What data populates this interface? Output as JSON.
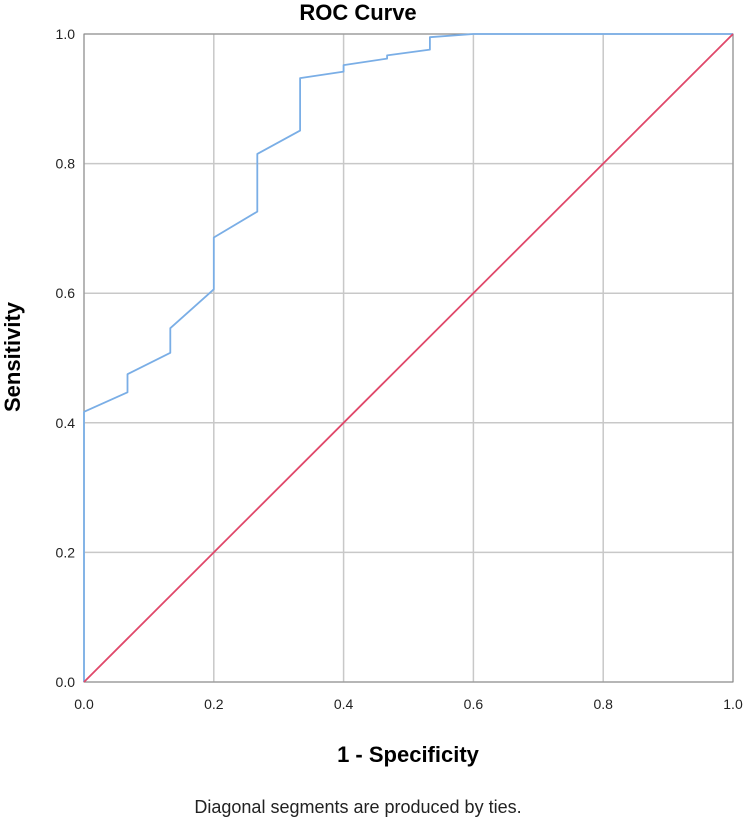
{
  "chart_data": {
    "type": "line",
    "title": "ROC Curve",
    "xlabel": "1 - Specificity",
    "ylabel": "Sensitivity",
    "footnote": "Diagonal segments are produced by ties.",
    "xlim": [
      0,
      1
    ],
    "ylim": [
      0,
      1
    ],
    "x_ticks": [
      "0.0",
      "0.2",
      "0.4",
      "0.6",
      "0.8",
      "1.0"
    ],
    "y_ticks": [
      "0.0",
      "0.2",
      "0.4",
      "0.6",
      "0.8",
      "1.0"
    ],
    "grid": true,
    "series": [
      {
        "color": "#7aaee6",
        "x": [
          0.0,
          0.0,
          0.067,
          0.067,
          0.133,
          0.133,
          0.2,
          0.2,
          0.267,
          0.267,
          0.333,
          0.333,
          0.4,
          0.4,
          0.467,
          0.467,
          0.533,
          0.533,
          0.6,
          1.0
        ],
        "y": [
          0.0,
          0.417,
          0.447,
          0.475,
          0.508,
          0.546,
          0.606,
          0.686,
          0.726,
          0.815,
          0.851,
          0.932,
          0.942,
          0.952,
          0.962,
          0.967,
          0.976,
          0.995,
          1.0,
          1.0
        ]
      },
      {
        "color": "#e0486a",
        "x": [
          0.0,
          1.0
        ],
        "y": [
          0.0,
          1.0
        ]
      }
    ]
  }
}
